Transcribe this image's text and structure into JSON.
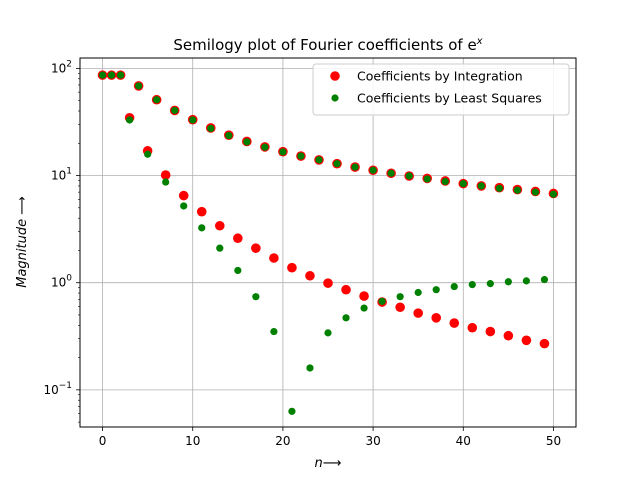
{
  "chart_data": {
    "type": "scatter",
    "title": "Semilogy plot of Fourier coefficients of e",
    "title_superscript": "x",
    "xlabel": "n",
    "xlabel_arrow": "⟶",
    "ylabel": "Magnitude",
    "ylabel_arrow": "⟶",
    "xlim": [
      -2.5,
      52.5
    ],
    "ylim": [
      0.045,
      125
    ],
    "yscale": "log",
    "grid": true,
    "legend_position": "top-right",
    "x_ticks": [
      {
        "value": 0,
        "label": "0"
      },
      {
        "value": 10,
        "label": "10"
      },
      {
        "value": 20,
        "label": "20"
      },
      {
        "value": 30,
        "label": "30"
      },
      {
        "value": 40,
        "label": "40"
      },
      {
        "value": 50,
        "label": "50"
      }
    ],
    "y_ticks": [
      {
        "value": 100,
        "base": "10",
        "exp": "2"
      },
      {
        "value": 10,
        "base": "10",
        "exp": "1"
      },
      {
        "value": 1,
        "base": "10",
        "exp": "0"
      },
      {
        "value": 0.1,
        "base": "10",
        "exp": "−1"
      }
    ],
    "series": [
      {
        "name": "Coefficients by Integration",
        "color": "#ff0000",
        "marker_size": "large",
        "x": [
          0,
          1,
          2,
          3,
          4,
          5,
          6,
          7,
          8,
          9,
          10,
          11,
          12,
          13,
          14,
          15,
          16,
          17,
          18,
          19,
          20,
          21,
          22,
          23,
          24,
          25,
          26,
          27,
          28,
          29,
          30,
          31,
          32,
          33,
          34,
          35,
          36,
          37,
          38,
          39,
          40,
          41,
          42,
          43,
          44,
          45,
          46,
          47,
          48,
          49,
          50
        ],
        "y": [
          86.5,
          86.5,
          86.5,
          34.6,
          68.6,
          17.0,
          51.0,
          10.1,
          40.5,
          6.5,
          33.2,
          4.6,
          27.8,
          3.4,
          23.8,
          2.6,
          20.8,
          2.1,
          18.5,
          1.7,
          16.7,
          1.38,
          15.2,
          1.16,
          14.0,
          0.99,
          12.9,
          0.86,
          12.0,
          0.75,
          11.2,
          0.66,
          10.5,
          0.59,
          9.9,
          0.52,
          9.4,
          0.47,
          8.9,
          0.42,
          8.4,
          0.38,
          8.0,
          0.35,
          7.7,
          0.32,
          7.4,
          0.29,
          7.1,
          0.27,
          6.8
        ]
      },
      {
        "name": "Coefficients by Least Squares",
        "color": "#008000",
        "marker_size": "small",
        "x": [
          0,
          1,
          2,
          3,
          4,
          5,
          6,
          7,
          8,
          9,
          10,
          11,
          12,
          13,
          14,
          15,
          16,
          17,
          18,
          19,
          20,
          21,
          22,
          23,
          24,
          25,
          26,
          27,
          28,
          29,
          30,
          31,
          32,
          33,
          34,
          35,
          36,
          37,
          38,
          39,
          40,
          41,
          42,
          43,
          44,
          45,
          46,
          47,
          48,
          49,
          50
        ],
        "y": [
          86.5,
          86.5,
          86.5,
          33.0,
          68.6,
          15.8,
          51.0,
          8.7,
          40.5,
          5.2,
          33.0,
          3.25,
          27.5,
          2.1,
          23.6,
          1.3,
          20.6,
          0.74,
          18.4,
          0.35,
          16.6,
          0.063,
          15.2,
          0.16,
          14.0,
          0.34,
          12.9,
          0.47,
          12.0,
          0.58,
          11.2,
          0.67,
          10.5,
          0.74,
          9.9,
          0.81,
          9.3,
          0.86,
          8.8,
          0.92,
          8.4,
          0.96,
          8.0,
          0.98,
          7.6,
          1.02,
          7.3,
          1.04,
          7.0,
          1.07,
          6.7
        ]
      }
    ]
  }
}
